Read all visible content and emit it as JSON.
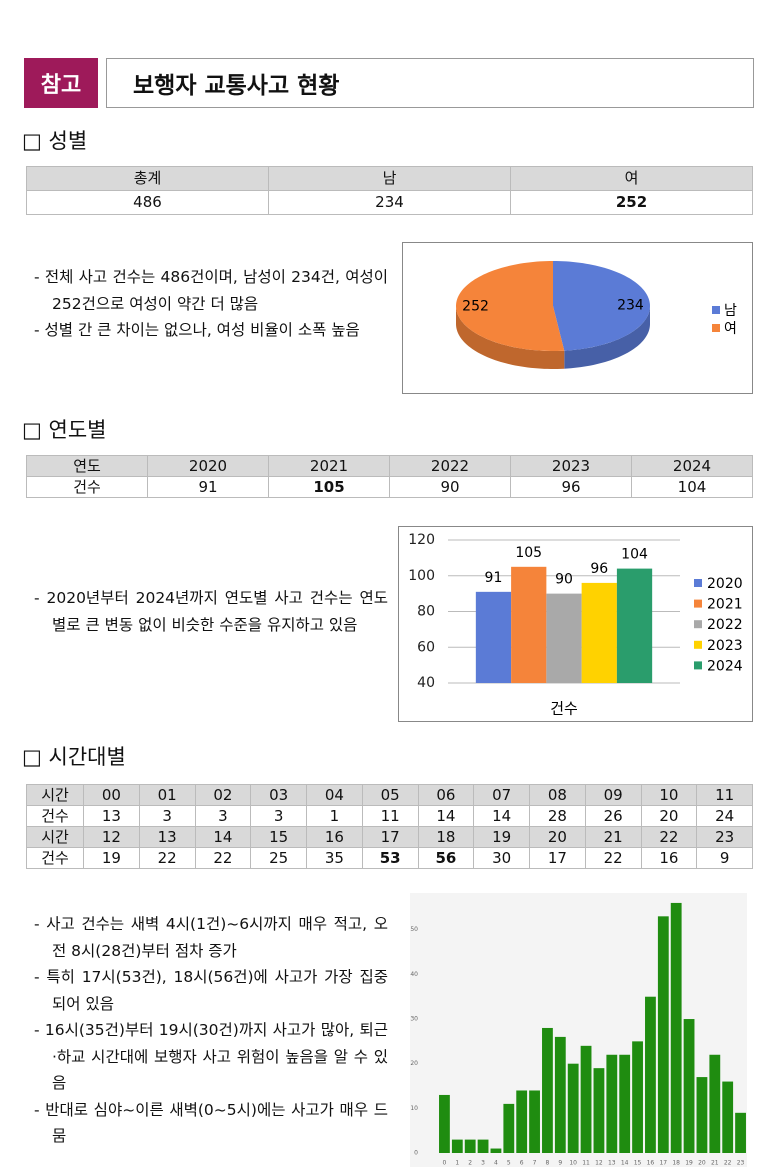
{
  "header": {
    "badge": "참고",
    "title": "보행자 교통사고 현황"
  },
  "sections": [
    {
      "heading": "□ 성별",
      "table": {
        "rows": [
          [
            "총계",
            "남",
            "여"
          ],
          [
            486,
            234,
            252
          ]
        ]
      },
      "bullets": [
        "- 전체 사고 건수는 486건이며, 남성이 234건, 여성이 252건으로 여성이 약간 더 많음",
        "- 성별 간 큰 차이는 없으나, 여성 비율이 소폭 높음"
      ]
    },
    {
      "heading": "□ 연도별",
      "table": {
        "rows": [
          [
            "연도",
            2020,
            2021,
            2022,
            2023,
            2024
          ],
          [
            "건수",
            91,
            105,
            90,
            96,
            104
          ]
        ]
      },
      "bullets": [
        "- 2020년부터 2024년까지 연도별 사고 건수는 연도별로 큰 변동 없이 비슷한 수준을 유지하고 있음"
      ]
    },
    {
      "heading": "□ 시간대별",
      "table": {
        "rows": [
          [
            "시간",
            "00",
            "01",
            "02",
            "03",
            "04",
            "05",
            "06",
            "07",
            "08",
            "09",
            "10",
            "11"
          ],
          [
            "건수",
            13,
            3,
            3,
            3,
            1,
            11,
            14,
            14,
            28,
            26,
            20,
            24
          ],
          [
            "시간",
            12,
            13,
            14,
            15,
            16,
            17,
            18,
            19,
            20,
            21,
            22,
            23
          ],
          [
            "건수",
            19,
            22,
            22,
            25,
            35,
            53,
            56,
            30,
            17,
            22,
            16,
            9
          ]
        ]
      },
      "bullets": [
        "- 사고 건수는 새벽 4시(1건)~6시까지 매우 적고, 오전 8시(28건)부터 점차 증가",
        "- 특히 17시(53건), 18시(56건)에 사고가 가장 집중되어 있음",
        "- 16시(35건)부터 19시(30건)까지 사고가 많아, 퇴근·하교 시간대에 보행자 사고 위험이 높음을 알 수 있음",
        "- 반대로 심야~이른 새벽(0~5시)에는 사고가 매우 드뭄"
      ]
    }
  ],
  "chart_data": [
    {
      "type": "pie",
      "categories": [
        "남",
        "여"
      ],
      "values": [
        234,
        252
      ],
      "colors": [
        "#5b7bd6",
        "#f5843a"
      ],
      "legend": "right"
    },
    {
      "type": "bar",
      "categories": [
        "건수"
      ],
      "series": [
        {
          "name": "2020",
          "color": "#5b7bd6",
          "values": [
            91
          ]
        },
        {
          "name": "2021",
          "color": "#f5843a",
          "values": [
            105
          ]
        },
        {
          "name": "2022",
          "color": "#a9a9a9",
          "values": [
            90
          ]
        },
        {
          "name": "2023",
          "color": "#ffd200",
          "values": [
            96
          ]
        },
        {
          "name": "2024",
          "color": "#2a9d6c",
          "values": [
            104
          ]
        }
      ],
      "ylim": [
        40,
        120
      ],
      "yticks": [
        40,
        60,
        80,
        100,
        120
      ],
      "grid": true,
      "legend": "right"
    },
    {
      "type": "bar",
      "categories": [
        "0",
        "1",
        "2",
        "3",
        "4",
        "5",
        "6",
        "7",
        "8",
        "9",
        "10",
        "11",
        "12",
        "13",
        "14",
        "15",
        "16",
        "17",
        "18",
        "19",
        "20",
        "21",
        "22",
        "23"
      ],
      "values": [
        13,
        3,
        3,
        3,
        1,
        11,
        14,
        14,
        28,
        26,
        20,
        24,
        19,
        22,
        22,
        25,
        35,
        53,
        56,
        30,
        17,
        22,
        16,
        9
      ],
      "color": "#1f8c10",
      "ylim": [
        0,
        58
      ],
      "yticks": [
        0,
        10,
        20,
        30,
        40,
        50
      ],
      "grid": false
    }
  ]
}
